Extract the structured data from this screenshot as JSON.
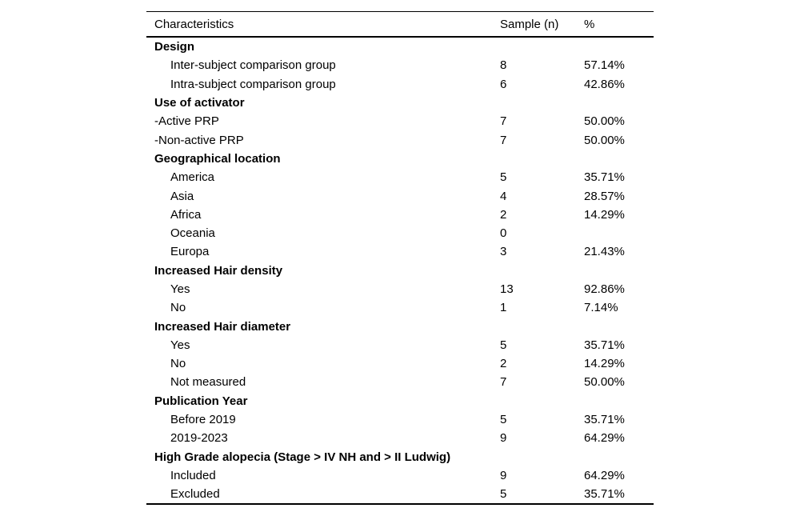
{
  "page": {
    "background_color": "#ffffff",
    "text_color": "#000000",
    "rule_color": "#000000"
  },
  "table": {
    "columns": {
      "characteristics": "Characteristics",
      "sample": "Sample (n)",
      "percent": "%"
    },
    "rows": [
      {
        "label": "Design",
        "style": "section",
        "sample": "",
        "pct": ""
      },
      {
        "label": "Inter-subject comparison group",
        "style": "indent",
        "sample": "8",
        "pct": "57.14%"
      },
      {
        "label": "Intra-subject comparison group",
        "style": "indent",
        "sample": "6",
        "pct": "42.86%"
      },
      {
        "label": "Use of activator",
        "style": "section",
        "sample": "",
        "pct": ""
      },
      {
        "label": "-Active PRP",
        "style": "flush",
        "sample": "7",
        "pct": "50.00%"
      },
      {
        "label": "-Non-active PRP",
        "style": "flush",
        "sample": "7",
        "pct": "50.00%"
      },
      {
        "label": "Geographical location",
        "style": "section",
        "sample": "",
        "pct": ""
      },
      {
        "label": "America",
        "style": "indent",
        "sample": "5",
        "pct": "35.71%"
      },
      {
        "label": "Asia",
        "style": "indent",
        "sample": "4",
        "pct": "28.57%"
      },
      {
        "label": "Africa",
        "style": "indent",
        "sample": "2",
        "pct": "14.29%"
      },
      {
        "label": "Oceania",
        "style": "indent",
        "sample": "0",
        "pct": ""
      },
      {
        "label": "Europa",
        "style": "indent",
        "sample": "3",
        "pct": "21.43%"
      },
      {
        "label": "Increased Hair density",
        "style": "section",
        "sample": "",
        "pct": ""
      },
      {
        "label": "Yes",
        "style": "indent",
        "sample": "13",
        "pct": "92.86%"
      },
      {
        "label": "No",
        "style": "indent",
        "sample": "1",
        "pct": "7.14%"
      },
      {
        "label": "Increased Hair diameter",
        "style": "section",
        "sample": "",
        "pct": ""
      },
      {
        "label": "Yes",
        "style": "indent",
        "sample": "5",
        "pct": "35.71%"
      },
      {
        "label": "No",
        "style": "indent",
        "sample": "2",
        "pct": "14.29%"
      },
      {
        "label": "Not measured",
        "style": "indent",
        "sample": "7",
        "pct": "50.00%"
      },
      {
        "label": "Publication Year",
        "style": "section",
        "sample": "",
        "pct": ""
      },
      {
        "label": "Before 2019",
        "style": "indent",
        "sample": "5",
        "pct": "35.71%"
      },
      {
        "label": "2019-2023",
        "style": "indent",
        "sample": "9",
        "pct": "64.29%"
      },
      {
        "label": "High Grade alopecia (Stage > IV NH and > II Ludwig)",
        "style": "section",
        "sample": "",
        "pct": ""
      },
      {
        "label": "Included",
        "style": "indent",
        "sample": "9",
        "pct": "64.29%"
      },
      {
        "label": "Excluded",
        "style": "indent",
        "sample": "5",
        "pct": "35.71%"
      }
    ]
  }
}
